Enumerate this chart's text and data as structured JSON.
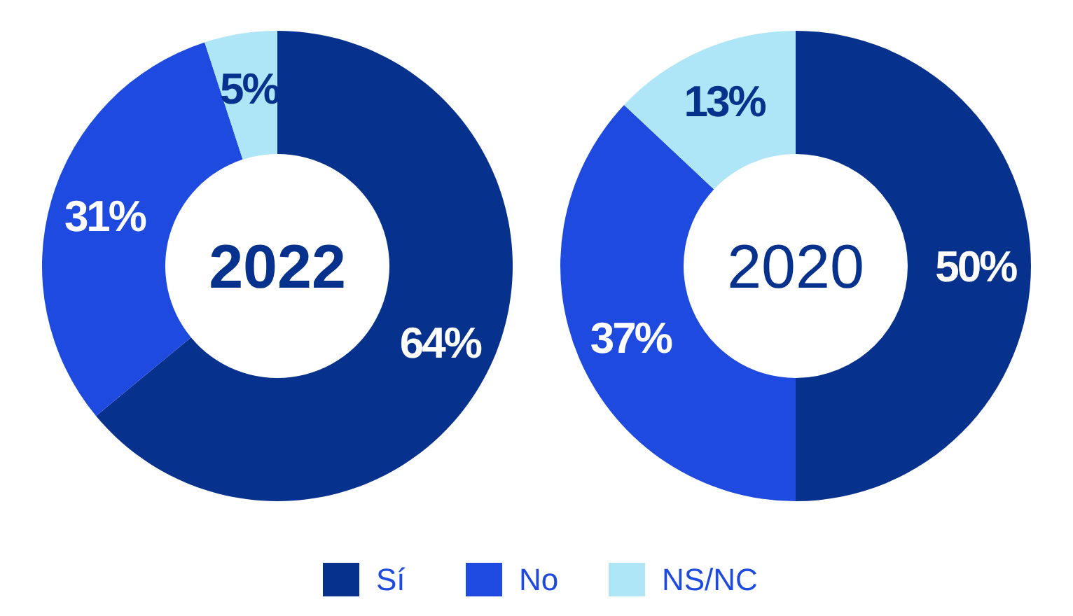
{
  "chart_data": [
    {
      "type": "donut",
      "title": "2022",
      "categories": [
        "Sí",
        "No",
        "NS/NC"
      ],
      "values": [
        64,
        31,
        5
      ],
      "colors": [
        "#06318c",
        "#1f4ae0",
        "#aee6f8"
      ],
      "value_labels": [
        "64%",
        "31%",
        "5%"
      ],
      "legend": "bottom"
    },
    {
      "type": "donut",
      "title": "2020",
      "categories": [
        null,
        null,
        null
      ],
      "values": [
        50,
        37,
        13
      ],
      "colors": [
        "#06318c",
        "#1f4ae0",
        "#aee6f8"
      ],
      "value_labels": [
        "50%",
        "37%",
        "13%"
      ]
    }
  ]
}
